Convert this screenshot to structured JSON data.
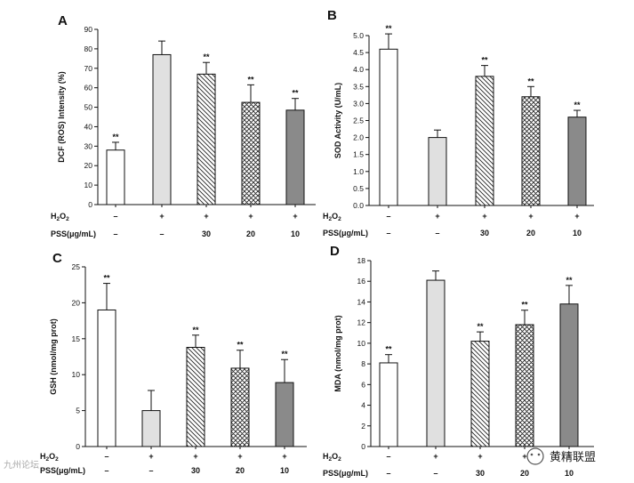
{
  "watermark": {
    "text": "黄精联盟",
    "corner_text": "九州论坛"
  },
  "chart_data": [
    {
      "type": "bar",
      "panel": "A",
      "ylabel": "DCF (ROS) Intensity (%)",
      "ylim": [
        0,
        90
      ],
      "yticks": [
        0,
        10,
        20,
        30,
        40,
        50,
        60,
        70,
        80,
        90
      ],
      "values": [
        28,
        77,
        67,
        52.5,
        48.5
      ],
      "errors": [
        4,
        7,
        6,
        9,
        6
      ],
      "significance": [
        "**",
        "",
        "**",
        "**",
        "**"
      ],
      "fills": [
        "open",
        "light",
        "diag",
        "cross",
        "dark"
      ],
      "conditions": [
        {
          "label": "H2O2",
          "values": [
            "–",
            "+",
            "+",
            "+",
            "+"
          ]
        },
        {
          "label": "PSS(μg/mL)",
          "values": [
            "–",
            "–",
            "30",
            "20",
            "10"
          ]
        }
      ]
    },
    {
      "type": "bar",
      "panel": "B",
      "ylabel": "SOD Activity (U/mL)",
      "ylim": [
        0,
        5.0
      ],
      "yticks": [
        0.0,
        0.5,
        1.0,
        1.5,
        2.0,
        2.5,
        3.0,
        3.5,
        4.0,
        4.5,
        5.0
      ],
      "values": [
        4.6,
        2.0,
        3.8,
        3.2,
        2.6
      ],
      "errors": [
        0.45,
        0.22,
        0.32,
        0.3,
        0.2
      ],
      "significance": [
        "**",
        "",
        "**",
        "**",
        "**"
      ],
      "fills": [
        "open",
        "light",
        "diag",
        "cross",
        "dark"
      ],
      "conditions": [
        {
          "label": "H2O2",
          "values": [
            "–",
            "+",
            "+",
            "+",
            "+"
          ]
        },
        {
          "label": "PSS(μg/mL)",
          "values": [
            "–",
            "–",
            "30",
            "20",
            "10"
          ]
        }
      ]
    },
    {
      "type": "bar",
      "panel": "C",
      "ylabel": "GSH (nmol/mg prot)",
      "ylim": [
        0,
        25
      ],
      "yticks": [
        0,
        5,
        10,
        15,
        20,
        25
      ],
      "values": [
        19,
        5,
        13.8,
        10.9,
        8.9
      ],
      "errors": [
        3.7,
        2.8,
        1.7,
        2.5,
        3.2
      ],
      "significance": [
        "**",
        "",
        "**",
        "**",
        "**"
      ],
      "fills": [
        "open",
        "light",
        "diag",
        "cross",
        "dark"
      ],
      "conditions": [
        {
          "label": "H2O2",
          "values": [
            "–",
            "+",
            "+",
            "+",
            "+"
          ]
        },
        {
          "label": "PSS(μg/mL)",
          "values": [
            "–",
            "–",
            "30",
            "20",
            "10"
          ]
        }
      ]
    },
    {
      "type": "bar",
      "panel": "D",
      "ylabel": "MDA (nmol/mg prot)",
      "ylim": [
        0,
        18
      ],
      "yticks": [
        0,
        2,
        4,
        6,
        8,
        10,
        12,
        14,
        16,
        18
      ],
      "values": [
        8.1,
        16.1,
        10.2,
        11.8,
        13.8
      ],
      "errors": [
        0.8,
        0.9,
        0.9,
        1.4,
        1.8
      ],
      "significance": [
        "**",
        "",
        "**",
        "**",
        "**"
      ],
      "fills": [
        "open",
        "light",
        "diag",
        "cross",
        "dark"
      ],
      "conditions": [
        {
          "label": "H2O2",
          "values": [
            "–",
            "+",
            "+",
            "+",
            "+"
          ]
        },
        {
          "label": "PSS(μg/mL)",
          "values": [
            "–",
            "–",
            "30",
            "20",
            "10"
          ]
        }
      ]
    }
  ]
}
